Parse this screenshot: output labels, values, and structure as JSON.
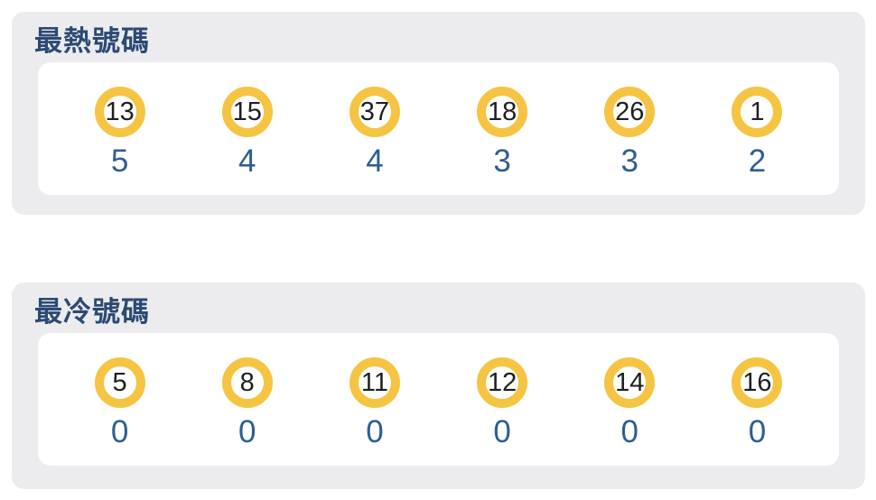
{
  "colors": {
    "panel_bg": "#ECECEE",
    "card_bg": "#FFFFFF",
    "ball_ring": "#F6C443",
    "ball_number_color": "#1F1F1F",
    "title_color": "#2B4A74",
    "count_color": "#2E5E93"
  },
  "panels": [
    {
      "title": "最熱號碼",
      "items": [
        {
          "number": "13",
          "count": "5"
        },
        {
          "number": "15",
          "count": "4"
        },
        {
          "number": "37",
          "count": "4"
        },
        {
          "number": "18",
          "count": "3"
        },
        {
          "number": "26",
          "count": "3"
        },
        {
          "number": "1",
          "count": "2"
        }
      ]
    },
    {
      "title": "最冷號碼",
      "items": [
        {
          "number": "5",
          "count": "0"
        },
        {
          "number": "8",
          "count": "0"
        },
        {
          "number": "11",
          "count": "0"
        },
        {
          "number": "12",
          "count": "0"
        },
        {
          "number": "14",
          "count": "0"
        },
        {
          "number": "16",
          "count": "0"
        }
      ]
    }
  ]
}
